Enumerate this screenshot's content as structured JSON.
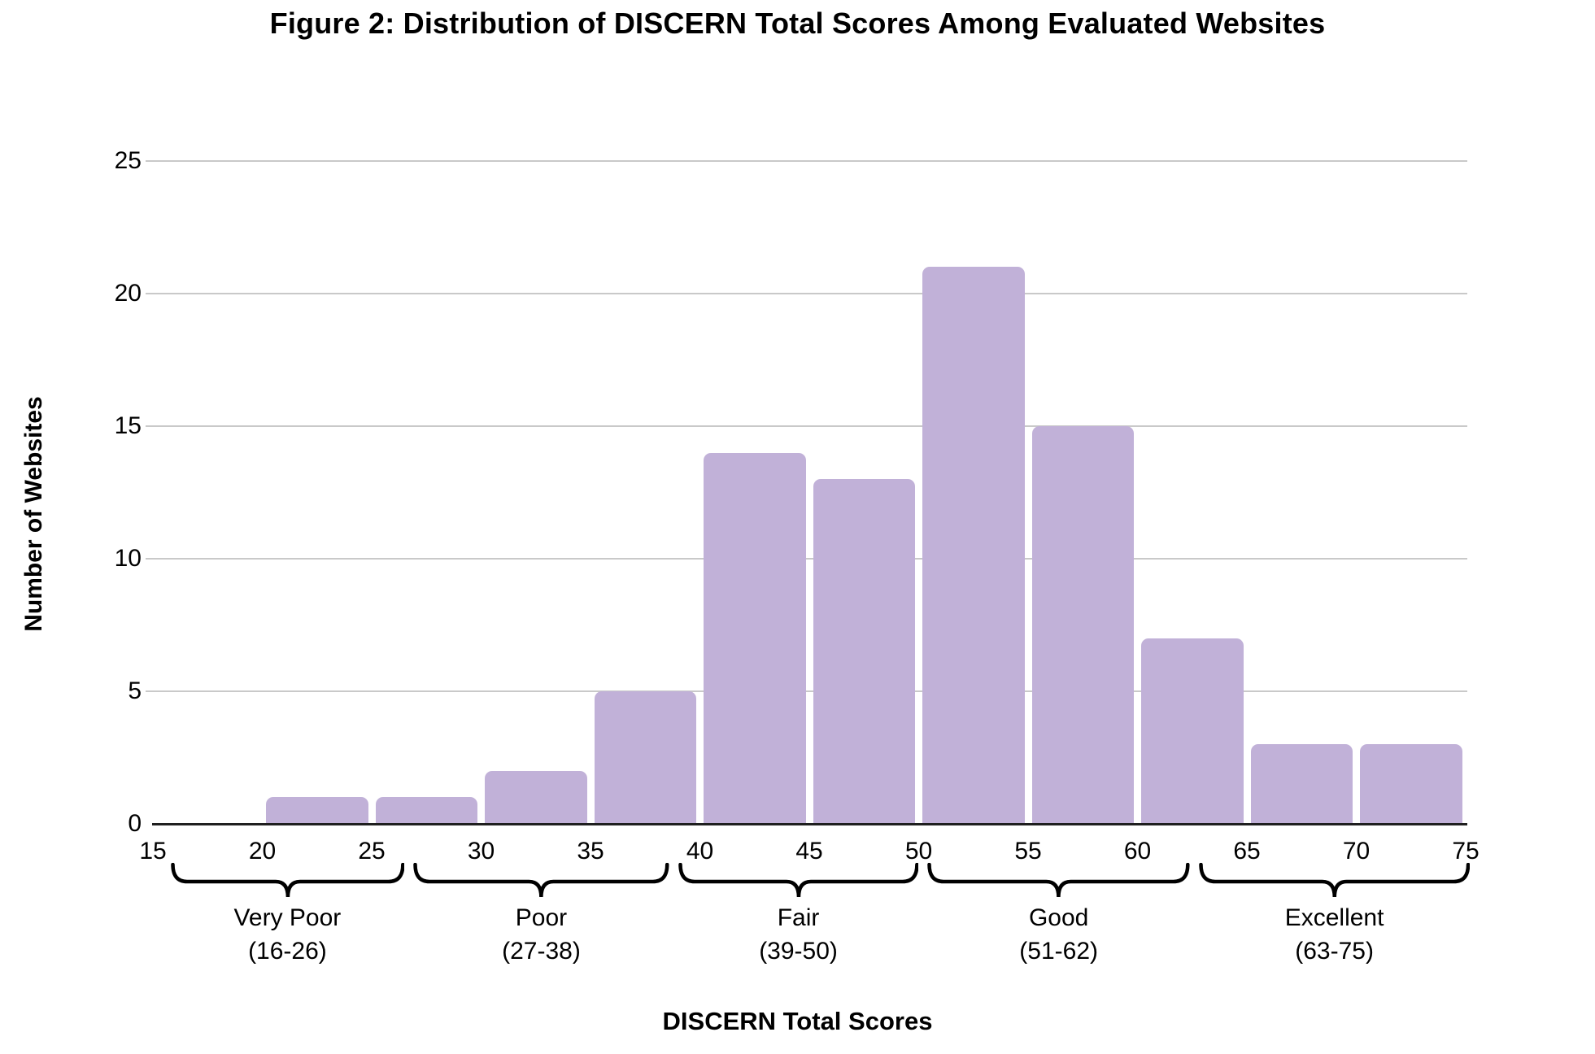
{
  "figure": {
    "title": "Figure 2: Distribution of DISCERN Total Scores Among Evaluated Websites"
  },
  "chart_data": {
    "type": "bar",
    "title": "Figure 2: Distribution of DISCERN Total Scores Among Evaluated Websites",
    "xlabel": "DISCERN Total Scores",
    "ylabel": "Number of Websites",
    "xlim": [
      15,
      75
    ],
    "ylim": [
      0,
      25
    ],
    "x_ticks": [
      15,
      20,
      25,
      30,
      35,
      40,
      45,
      50,
      55,
      60,
      65,
      70,
      75
    ],
    "y_ticks": [
      0,
      5,
      10,
      15,
      20,
      25
    ],
    "grid": "horizontal",
    "legend": "none",
    "bar_color": "#c1b1d8",
    "gridline_color": "#c9c9c9",
    "axis_color": "#1f1f1f",
    "bracket_color": "#000000",
    "bins": [
      {
        "start": 20,
        "end": 25,
        "count": 1
      },
      {
        "start": 25,
        "end": 30,
        "count": 1
      },
      {
        "start": 30,
        "end": 35,
        "count": 2
      },
      {
        "start": 35,
        "end": 40,
        "count": 5
      },
      {
        "start": 40,
        "end": 45,
        "count": 14
      },
      {
        "start": 45,
        "end": 50,
        "count": 13
      },
      {
        "start": 50,
        "end": 55,
        "count": 21
      },
      {
        "start": 55,
        "end": 60,
        "count": 15
      },
      {
        "start": 60,
        "end": 65,
        "count": 7
      },
      {
        "start": 65,
        "end": 70,
        "count": 3
      },
      {
        "start": 70,
        "end": 75,
        "count": 3
      }
    ],
    "category_brackets": [
      {
        "label": "Very Poor",
        "range": "(16-26)",
        "from": 15.8,
        "to": 26.5
      },
      {
        "label": "Poor",
        "range": "(27-38)",
        "from": 26.9,
        "to": 38.6
      },
      {
        "label": "Fair",
        "range": "(39-50)",
        "from": 39.0,
        "to": 50.0
      },
      {
        "label": "Good",
        "range": "(51-62)",
        "from": 50.4,
        "to": 62.4
      },
      {
        "label": "Excellent",
        "range": "(63-75)",
        "from": 62.8,
        "to": 75.2
      }
    ]
  }
}
